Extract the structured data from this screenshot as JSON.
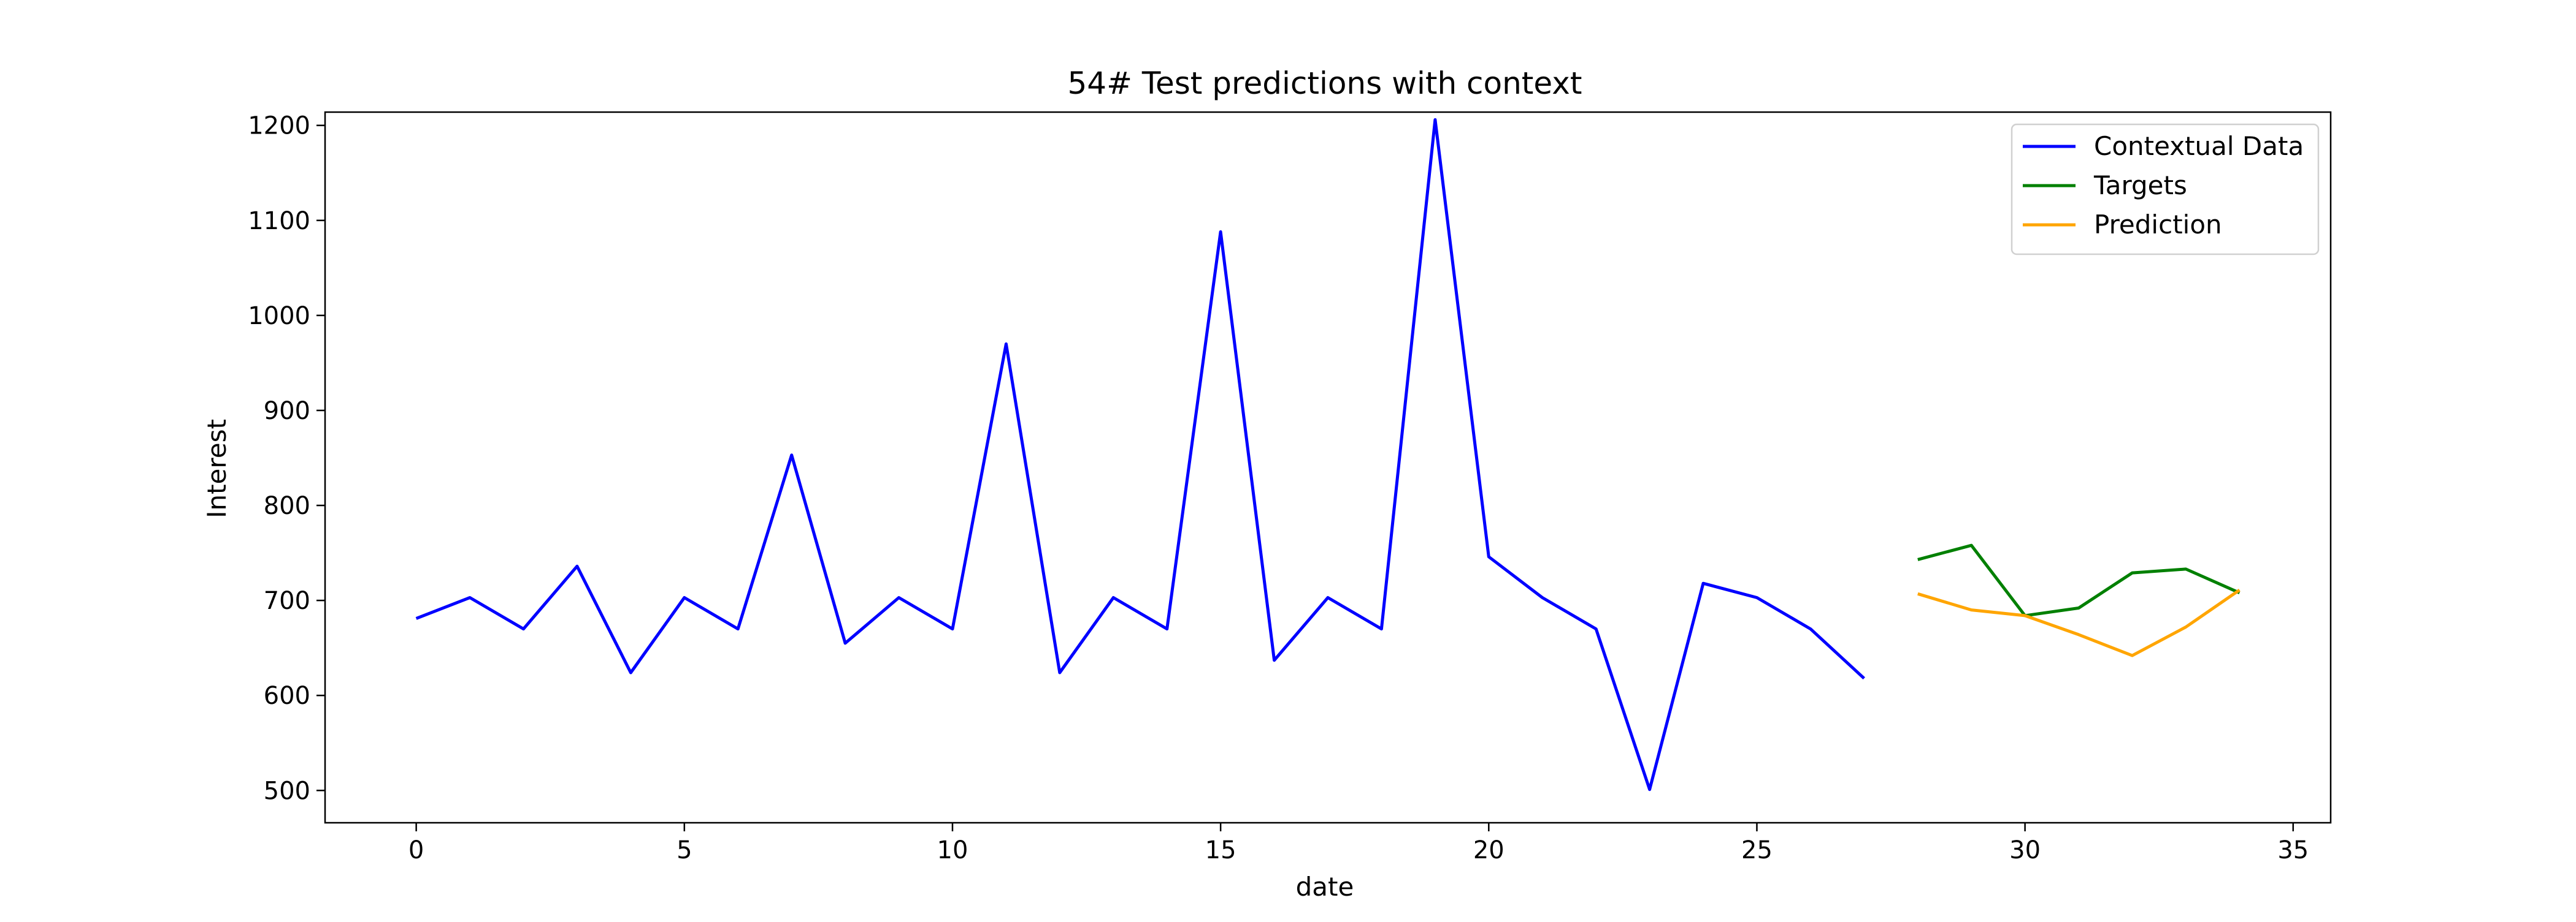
{
  "chart_data": {
    "type": "line",
    "title": "54# Test predictions with context",
    "xlabel": "date",
    "ylabel": "Interest",
    "xlim": [
      -1.7,
      35.7
    ],
    "ylim": [
      466,
      1214
    ],
    "xticks": [
      0,
      5,
      10,
      15,
      20,
      25,
      30,
      35
    ],
    "yticks": [
      500,
      600,
      700,
      800,
      900,
      1000,
      1100,
      1200
    ],
    "grid": false,
    "legend_position": "top-right",
    "series": [
      {
        "name": "Contextual Data",
        "color": "#0000ff",
        "x": [
          0,
          1,
          2,
          3,
          4,
          5,
          6,
          7,
          8,
          9,
          10,
          11,
          12,
          13,
          14,
          15,
          16,
          17,
          18,
          19,
          20,
          21,
          22,
          23,
          24,
          25,
          26,
          27
        ],
        "y": [
          681,
          703,
          670,
          736,
          624,
          703,
          670,
          853,
          655,
          703,
          670,
          970,
          624,
          703,
          670,
          1088,
          637,
          703,
          670,
          1206,
          746,
          703,
          670,
          501,
          718,
          703,
          670,
          618
        ]
      },
      {
        "name": "Targets",
        "color": "#008000",
        "x": [
          28,
          29,
          30,
          31,
          32,
          33,
          34
        ],
        "y": [
          743,
          758,
          684,
          692,
          729,
          733,
          708
        ]
      },
      {
        "name": "Prediction",
        "color": "#ffa500",
        "x": [
          28,
          29,
          30,
          31,
          32,
          33,
          34
        ],
        "y": [
          707,
          690,
          684,
          664,
          642,
          672,
          711
        ]
      }
    ]
  }
}
